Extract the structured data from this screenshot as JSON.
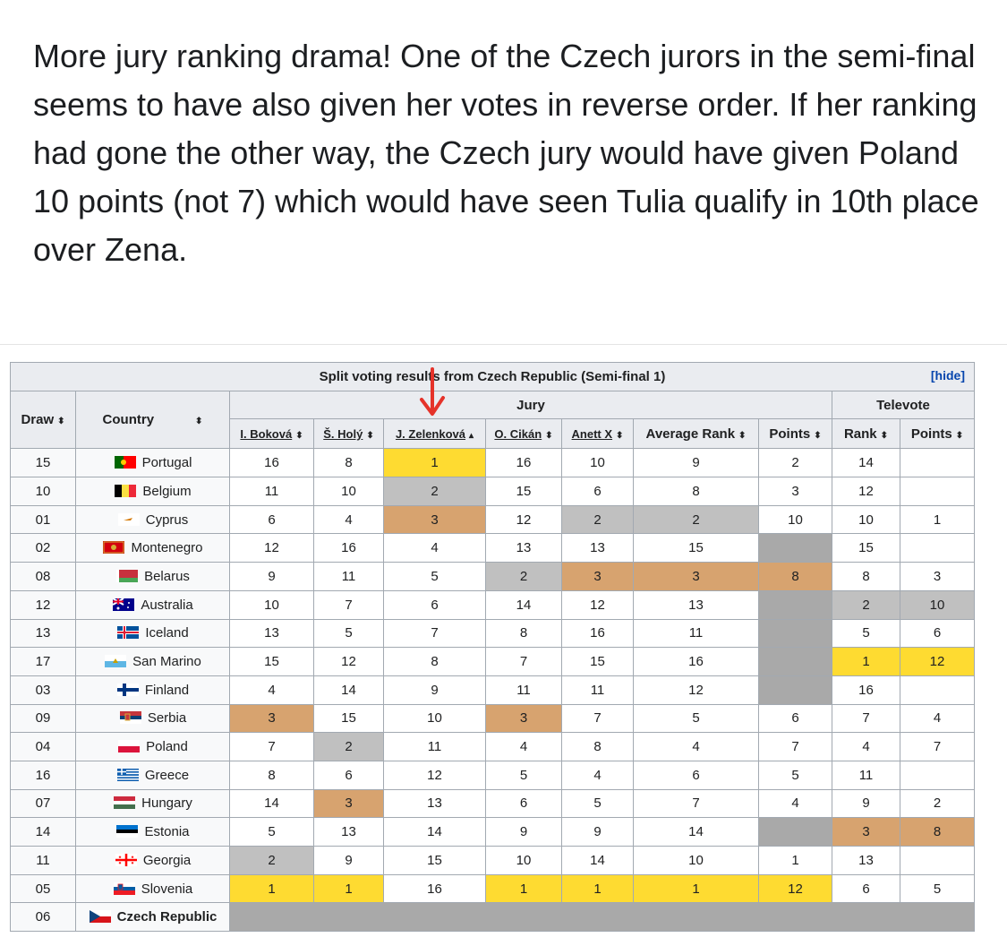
{
  "post": {
    "text": "More jury ranking drama! One of the Czech jurors in the semi-final seems to have also given her votes in reverse order. If her ranking had gone the other way, the Czech jury would have given Poland 10 points (not 7) which would have seen Tulia qualify in 10th place over Zena."
  },
  "table": {
    "caption": "Split voting results from Czech Republic (Semi-final 1)",
    "hide_link": "[hide]",
    "headers": {
      "draw": "Draw",
      "country": "Country",
      "jury": "Jury",
      "televote": "Televote",
      "jurors": [
        "I. Boková",
        "Š. Holý",
        "J. Zelenková",
        "O. Cikán",
        "Anett X"
      ],
      "average_rank": "Average Rank",
      "points": "Points",
      "rank": "Rank",
      "tv_points": "Points"
    },
    "colors": {
      "gold": "#fedb31",
      "silver": "#c0c0c0",
      "bronze": "#d7a36f",
      "grey": "#a9a9a9",
      "header": "#eaecf0"
    },
    "rows": [
      {
        "draw": "15",
        "country": "Portugal",
        "flag": "portugal-flag",
        "j": [
          "16",
          "8",
          "1",
          "16",
          "10"
        ],
        "avg": "9",
        "pts": "2",
        "rank": "14",
        "tvpts": ""
      },
      {
        "draw": "10",
        "country": "Belgium",
        "flag": "belgium-flag",
        "j": [
          "11",
          "10",
          "2",
          "15",
          "6"
        ],
        "avg": "8",
        "pts": "3",
        "rank": "12",
        "tvpts": ""
      },
      {
        "draw": "01",
        "country": "Cyprus",
        "flag": "cyprus-flag",
        "j": [
          "6",
          "4",
          "3",
          "12",
          "2"
        ],
        "avg": "2",
        "pts": "10",
        "rank": "10",
        "tvpts": "1"
      },
      {
        "draw": "02",
        "country": "Montenegro",
        "flag": "montenegro-flag",
        "j": [
          "12",
          "16",
          "4",
          "13",
          "13"
        ],
        "avg": "15",
        "pts": "",
        "rank": "15",
        "tvpts": ""
      },
      {
        "draw": "08",
        "country": "Belarus",
        "flag": "belarus-flag",
        "j": [
          "9",
          "11",
          "5",
          "2",
          "3"
        ],
        "avg": "3",
        "pts": "8",
        "rank": "8",
        "tvpts": "3"
      },
      {
        "draw": "12",
        "country": "Australia",
        "flag": "australia-flag",
        "j": [
          "10",
          "7",
          "6",
          "14",
          "12"
        ],
        "avg": "13",
        "pts": "",
        "rank": "2",
        "tvpts": "10"
      },
      {
        "draw": "13",
        "country": "Iceland",
        "flag": "iceland-flag",
        "j": [
          "13",
          "5",
          "7",
          "8",
          "16"
        ],
        "avg": "11",
        "pts": "",
        "rank": "5",
        "tvpts": "6"
      },
      {
        "draw": "17",
        "country": "San Marino",
        "flag": "san-marino-flag",
        "j": [
          "15",
          "12",
          "8",
          "7",
          "15"
        ],
        "avg": "16",
        "pts": "",
        "rank": "1",
        "tvpts": "12"
      },
      {
        "draw": "03",
        "country": "Finland",
        "flag": "finland-flag",
        "j": [
          "4",
          "14",
          "9",
          "11",
          "11"
        ],
        "avg": "12",
        "pts": "",
        "rank": "16",
        "tvpts": ""
      },
      {
        "draw": "09",
        "country": "Serbia",
        "flag": "serbia-flag",
        "j": [
          "3",
          "15",
          "10",
          "3",
          "7"
        ],
        "avg": "5",
        "pts": "6",
        "rank": "7",
        "tvpts": "4"
      },
      {
        "draw": "04",
        "country": "Poland",
        "flag": "poland-flag",
        "j": [
          "7",
          "2",
          "11",
          "4",
          "8"
        ],
        "avg": "4",
        "pts": "7",
        "rank": "4",
        "tvpts": "7"
      },
      {
        "draw": "16",
        "country": "Greece",
        "flag": "greece-flag",
        "j": [
          "8",
          "6",
          "12",
          "5",
          "4"
        ],
        "avg": "6",
        "pts": "5",
        "rank": "11",
        "tvpts": ""
      },
      {
        "draw": "07",
        "country": "Hungary",
        "flag": "hungary-flag",
        "j": [
          "14",
          "3",
          "13",
          "6",
          "5"
        ],
        "avg": "7",
        "pts": "4",
        "rank": "9",
        "tvpts": "2"
      },
      {
        "draw": "14",
        "country": "Estonia",
        "flag": "estonia-flag",
        "j": [
          "5",
          "13",
          "14",
          "9",
          "9"
        ],
        "avg": "14",
        "pts": "",
        "rank": "3",
        "tvpts": "8"
      },
      {
        "draw": "11",
        "country": "Georgia",
        "flag": "georgia-flag",
        "j": [
          "2",
          "9",
          "15",
          "10",
          "14"
        ],
        "avg": "10",
        "pts": "1",
        "rank": "13",
        "tvpts": ""
      },
      {
        "draw": "05",
        "country": "Slovenia",
        "flag": "slovenia-flag",
        "j": [
          "1",
          "1",
          "16",
          "1",
          "1"
        ],
        "avg": "1",
        "pts": "12",
        "rank": "6",
        "tvpts": "5"
      },
      {
        "draw": "06",
        "country": "Czech Republic",
        "flag": "czech-flag",
        "j": [
          "",
          "",
          "",
          "",
          ""
        ],
        "avg": "",
        "pts": "",
        "rank": "",
        "tvpts": ""
      }
    ]
  }
}
